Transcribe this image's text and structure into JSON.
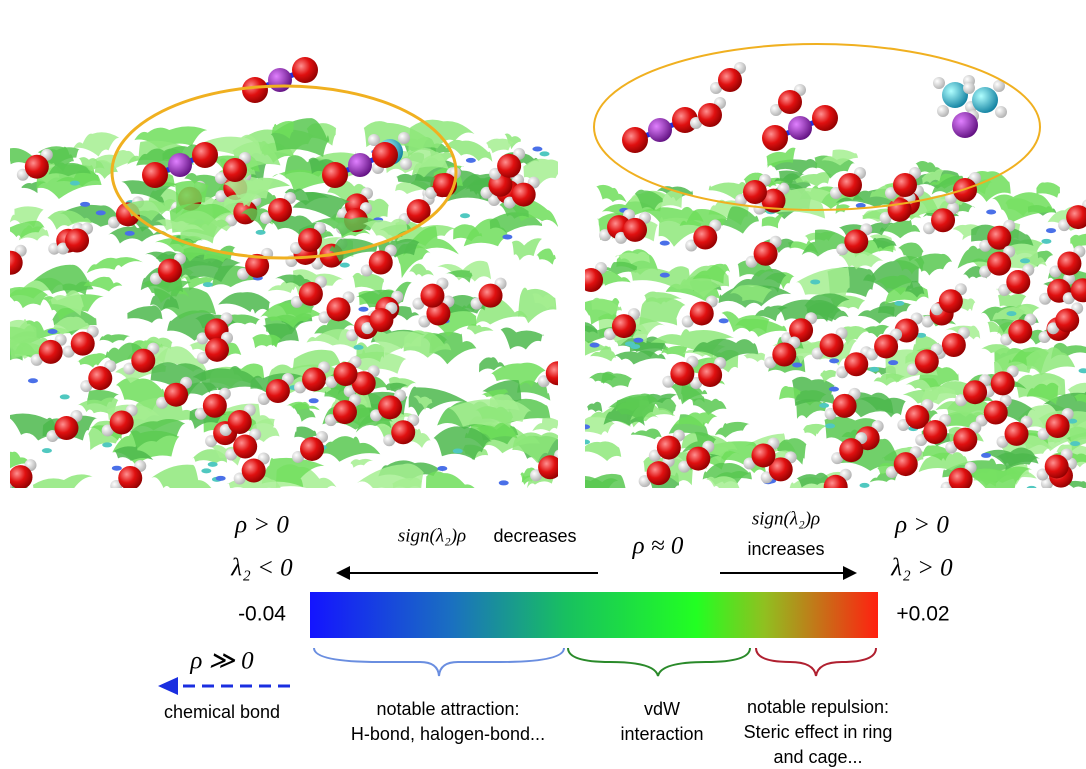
{
  "legend": {
    "left": {
      "rho": "ρ > 0",
      "lambda": "λ₂ < 0",
      "min": "-0.04"
    },
    "decrease": {
      "formula": "sign(λ₂)ρ",
      "word": "decreases"
    },
    "middle": "ρ ≈ 0",
    "increase": {
      "formula": "sign(λ₂)ρ",
      "word": "increases"
    },
    "right": {
      "rho": "ρ > 0",
      "lambda": "λ₂ > 0",
      "max": "+0.02"
    },
    "bond": {
      "rho": "ρ ≫ 0",
      "label": "chemical bond"
    },
    "attraction": [
      "notable attraction:",
      "H-bond, halogen-bond..."
    ],
    "vdw": [
      "vdW",
      "interaction"
    ],
    "repulsion": [
      "notable repulsion:",
      "Steric effect in ring",
      "and cage..."
    ]
  }
}
